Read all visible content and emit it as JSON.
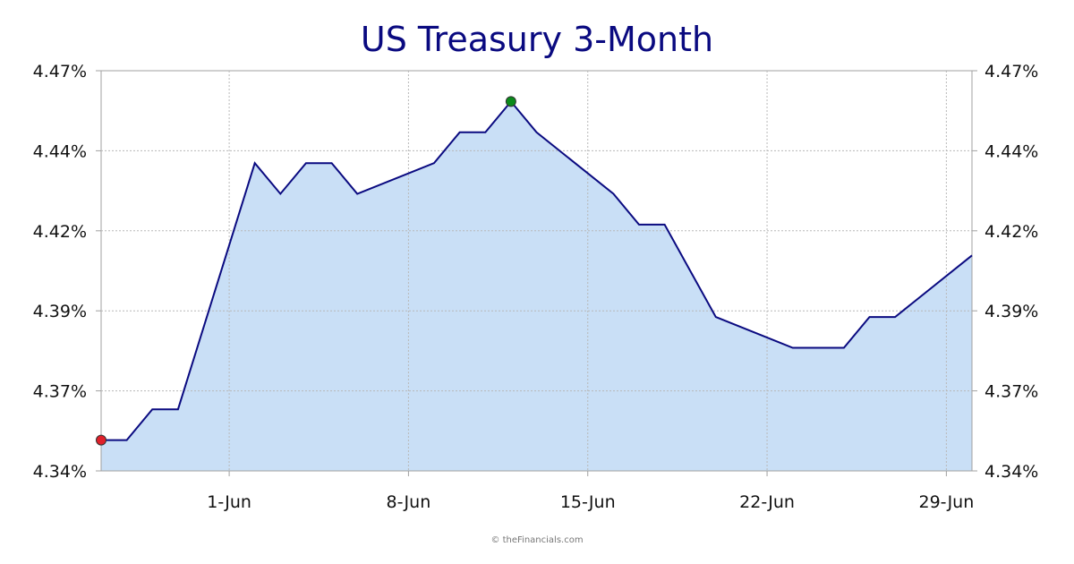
{
  "chart_data": {
    "type": "area",
    "title": "US Treasury 3-Month",
    "xlabel": "",
    "ylabel": "",
    "y_ticks": [
      "4.34%",
      "4.37%",
      "4.39%",
      "4.42%",
      "4.44%",
      "4.47%"
    ],
    "x_ticks": [
      "1-Jun",
      "8-Jun",
      "15-Jun",
      "22-Jun",
      "29-Jun"
    ],
    "ylim": [
      4.34,
      4.47
    ],
    "xlim": [
      "2023-05-27",
      "2023-06-30"
    ],
    "grid": true,
    "series": [
      {
        "values": [
          {
            "x": "2023-05-27",
            "y": 4.35
          },
          {
            "x": "2023-05-28",
            "y": 4.35
          },
          {
            "x": "2023-05-29",
            "y": 4.36
          },
          {
            "x": "2023-05-30",
            "y": 4.36
          },
          {
            "x": "2023-06-02",
            "y": 4.44
          },
          {
            "x": "2023-06-03",
            "y": 4.43
          },
          {
            "x": "2023-06-04",
            "y": 4.44
          },
          {
            "x": "2023-06-05",
            "y": 4.44
          },
          {
            "x": "2023-06-06",
            "y": 4.43
          },
          {
            "x": "2023-06-09",
            "y": 4.44
          },
          {
            "x": "2023-06-10",
            "y": 4.45
          },
          {
            "x": "2023-06-11",
            "y": 4.45
          },
          {
            "x": "2023-06-12",
            "y": 4.46
          },
          {
            "x": "2023-06-13",
            "y": 4.45
          },
          {
            "x": "2023-06-16",
            "y": 4.43
          },
          {
            "x": "2023-06-17",
            "y": 4.42
          },
          {
            "x": "2023-06-18",
            "y": 4.42
          },
          {
            "x": "2023-06-20",
            "y": 4.39
          },
          {
            "x": "2023-06-23",
            "y": 4.38
          },
          {
            "x": "2023-06-24",
            "y": 4.38
          },
          {
            "x": "2023-06-25",
            "y": 4.38
          },
          {
            "x": "2023-06-26",
            "y": 4.39
          },
          {
            "x": "2023-06-27",
            "y": 4.39
          },
          {
            "x": "2023-06-30",
            "y": 4.41
          }
        ]
      }
    ],
    "markers": [
      {
        "x": "2023-05-27",
        "y": 4.35,
        "color": "#e0202a"
      },
      {
        "x": "2023-06-12",
        "y": 4.46,
        "color": "#0a8a1a"
      }
    ],
    "colors": {
      "line": "#0a0a80",
      "fill": "#c9dff6",
      "grid": "#b8b8b8",
      "title": "#0a0a80"
    }
  },
  "footer": {
    "credit": "© theFinancials.com"
  }
}
